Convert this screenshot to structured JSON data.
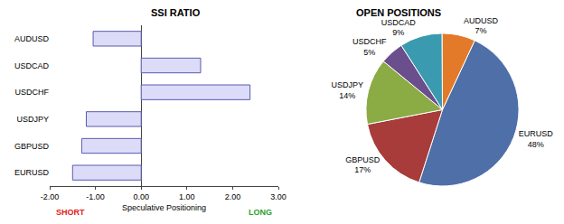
{
  "chart_data": [
    {
      "type": "bar",
      "title": "SSI RATIO",
      "orientation": "horizontal",
      "categories": [
        "EURUSD",
        "GBPUSD",
        "USDJPY",
        "USDCHF",
        "USDCAD",
        "AUDUSD"
      ],
      "values": [
        -1.5,
        -1.3,
        -1.2,
        2.38,
        1.3,
        -1.05
      ],
      "color": "#dcdcf8",
      "x_label": "Speculative Positioning",
      "annotations": [
        {
          "text": "SHORT",
          "color": "#e02020"
        },
        {
          "text": "LONG",
          "color": "#2e9e2e"
        }
      ],
      "xlim": [
        -2,
        3
      ],
      "xticks": [
        {
          "value": -2,
          "label": "-2.00"
        },
        {
          "value": -1,
          "label": "-1.00"
        },
        {
          "value": 0,
          "label": "0.00"
        },
        {
          "value": 1,
          "label": "1.00"
        },
        {
          "value": 2,
          "label": "2.00"
        },
        {
          "value": 3,
          "label": "3.00"
        }
      ],
      "grid": false
    },
    {
      "type": "pie",
      "title": "OPEN POSITIONS",
      "categories": [
        "EURUSD",
        "GBPUSD",
        "USDJPY",
        "USDCHF",
        "USDCAD",
        "AUDUSD"
      ],
      "values": [
        48,
        17,
        14,
        5,
        9,
        7
      ],
      "value_labels": [
        "48%",
        "17%",
        "14%",
        "5%",
        "9%",
        "7%"
      ],
      "colors": [
        "#4f6fa8",
        "#a83c3a",
        "#8bab45",
        "#6a4f8c",
        "#3a9ab0",
        "#e27a2a"
      ],
      "data_labels": true
    }
  ]
}
